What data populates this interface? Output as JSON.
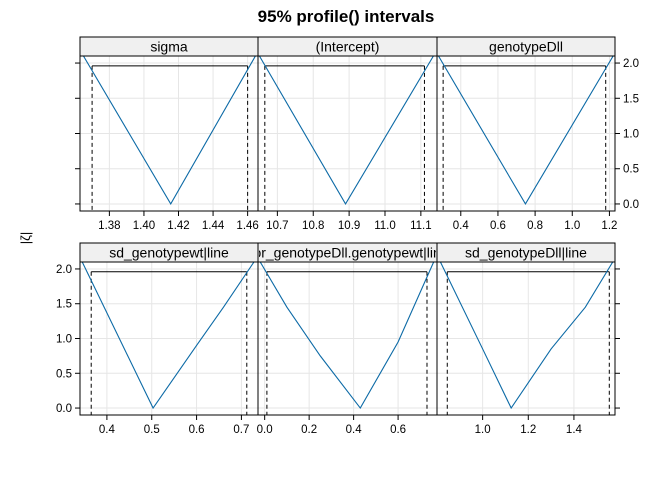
{
  "chart_data": {
    "type": "line",
    "title": "95% profile() intervals",
    "ylabel": "|ζ|",
    "ylim": [
      -0.1,
      2.1
    ],
    "yticks": [
      0.0,
      0.5,
      1.0,
      1.5,
      2.0
    ],
    "ytick_labels": [
      "0.0",
      "0.5",
      "1.0",
      "1.5",
      "2.0"
    ],
    "grid": true,
    "line_color": "#0c6aa6",
    "interval_level": 1.96,
    "panels": [
      {
        "name": "sigma",
        "xlim": [
          1.363,
          1.466
        ],
        "xticks": [
          1.38,
          1.4,
          1.42,
          1.44,
          1.46
        ],
        "xtick_labels": [
          "1.38",
          "1.40",
          "1.42",
          "1.44",
          "1.46"
        ],
        "interval": [
          1.37,
          1.46
        ],
        "curve": [
          [
            1.365,
            2.1
          ],
          [
            1.4155,
            0.0
          ],
          [
            1.4645,
            2.1
          ]
        ]
      },
      {
        "name": "(Intercept)",
        "xlim": [
          10.646,
          11.145
        ],
        "xticks": [
          10.7,
          10.8,
          10.9,
          11.0,
          11.1
        ],
        "xtick_labels": [
          "10.7",
          "10.8",
          "10.9",
          "11.0",
          "11.1"
        ],
        "interval": [
          10.665,
          11.11
        ],
        "curve": [
          [
            10.65,
            2.1
          ],
          [
            10.89,
            0.0
          ],
          [
            11.135,
            2.1
          ]
        ]
      },
      {
        "name": "genotypeDll",
        "xlim": [
          0.272,
          1.23
        ],
        "xticks": [
          0.4,
          0.6,
          0.8,
          1.0,
          1.2
        ],
        "xtick_labels": [
          "0.4",
          "0.6",
          "0.8",
          "1.0",
          "1.2"
        ],
        "interval": [
          0.305,
          1.18
        ],
        "curve": [
          [
            0.28,
            2.1
          ],
          [
            0.748,
            0.0
          ],
          [
            1.22,
            2.1
          ]
        ]
      },
      {
        "name": "sd_genotypewt|line",
        "xlim": [
          0.34,
          0.737
        ],
        "xticks": [
          0.4,
          0.5,
          0.6,
          0.7
        ],
        "xtick_labels": [
          "0.4",
          "0.5",
          "0.6",
          "0.7"
        ],
        "interval": [
          0.365,
          0.712
        ],
        "curve": [
          [
            0.345,
            2.1
          ],
          [
            0.503,
            0.0
          ],
          [
            0.6,
            0.9
          ],
          [
            0.66,
            1.45
          ],
          [
            0.728,
            2.1
          ]
        ]
      },
      {
        "name": "cor_genotypeDll.genotypewt|line",
        "xlim": [
          -0.03,
          0.775
        ],
        "xticks": [
          0.0,
          0.2,
          0.4,
          0.6
        ],
        "xtick_labels": [
          "0.0",
          "0.2",
          "0.4",
          "0.6"
        ],
        "interval": [
          0.01,
          0.73
        ],
        "curve": [
          [
            -0.02,
            2.1
          ],
          [
            0.1,
            1.45
          ],
          [
            0.25,
            0.75
          ],
          [
            0.43,
            0.0
          ],
          [
            0.6,
            0.95
          ],
          [
            0.76,
            2.1
          ]
        ]
      },
      {
        "name": "sd_genotypeDll|line",
        "xlim": [
          0.8,
          1.58
        ],
        "xticks": [
          1.0,
          1.2,
          1.4
        ],
        "xtick_labels": [
          "1.0",
          "1.2",
          "1.4"
        ],
        "interval": [
          0.845,
          1.555
        ],
        "curve": [
          [
            0.815,
            2.1
          ],
          [
            1.0,
            0.85
          ],
          [
            1.125,
            0.0
          ],
          [
            1.3,
            0.85
          ],
          [
            1.45,
            1.45
          ],
          [
            1.57,
            2.1
          ]
        ]
      }
    ]
  }
}
